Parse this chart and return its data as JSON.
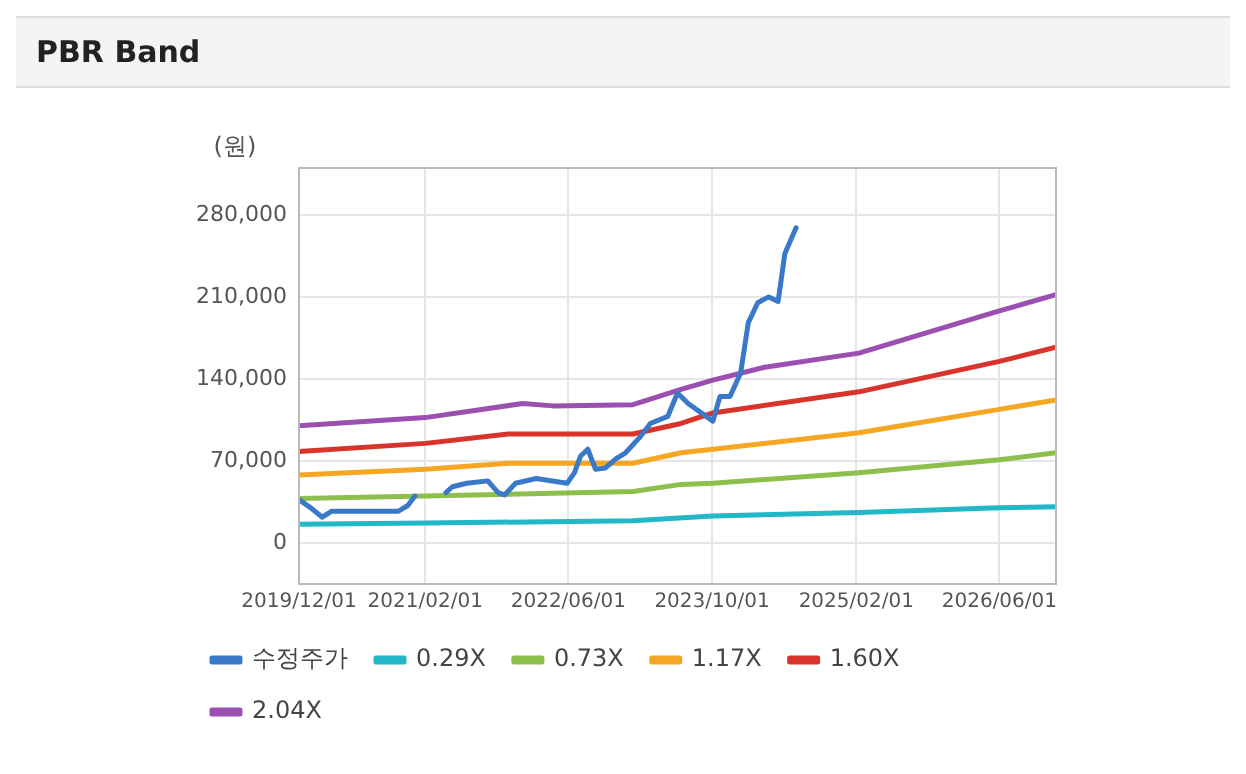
{
  "chart_data": {
    "type": "line",
    "title": "PBR Band",
    "ylabel": "(원)",
    "xlim": [
      "2019-12-01",
      "2026-12-10"
    ],
    "xticks": [
      {
        "value": "2019-12-01",
        "label": "2019/12/01"
      },
      {
        "value": "2021-02-01",
        "label": "2021/02/01"
      },
      {
        "value": "2022-06-01",
        "label": "2022/06/01"
      },
      {
        "value": "2023-10-01",
        "label": "2023/10/01"
      },
      {
        "value": "2025-02-01",
        "label": "2025/02/01"
      },
      {
        "value": "2026-06-01",
        "label": "2026/06/01"
      }
    ],
    "ylim": [
      -35000,
      320000
    ],
    "yticks": [
      {
        "value": 0,
        "label": "0"
      },
      {
        "value": 70000,
        "label": "70,000"
      },
      {
        "value": 140000,
        "label": "140,000"
      },
      {
        "value": 210000,
        "label": "210,000"
      },
      {
        "value": 280000,
        "label": "280,000"
      }
    ],
    "grid": true,
    "legend": "bottom",
    "marker": "none",
    "line_style": "solid",
    "series": [
      {
        "name": "수정주가",
        "color": "#3a78c8",
        "x": [
          "2019-12-01",
          "2020-01-10",
          "2020-02-18",
          "2020-03-20",
          "2020-11-01",
          "2020-12-04",
          "2020-12-28",
          "2021-02-01",
          "2021-04-12",
          "2021-05-04",
          "2021-06-22",
          "2021-09-01",
          "2021-10-06",
          "2021-10-28",
          "2021-12-04",
          "2022-02-12",
          "2022-05-28",
          "2022-06-22",
          "2022-07-12",
          "2022-08-06",
          "2022-09-01",
          "2022-10-04",
          "2022-11-10",
          "2022-12-12",
          "2023-02-01",
          "2023-03-06",
          "2023-05-04",
          "2023-06-06",
          "2023-07-12",
          "2023-10-04",
          "2023-10-28",
          "2023-12-01",
          "2024-01-06",
          "2024-02-01",
          "2024-03-04",
          "2024-04-10",
          "2024-05-12",
          "2024-06-04",
          "2024-07-12"
        ],
        "values": [
          37000,
          30000,
          22000,
          27000,
          27000,
          32000,
          40000,
          null,
          43000,
          48000,
          51000,
          53000,
          43000,
          41000,
          51000,
          55000,
          51000,
          60000,
          74000,
          80000,
          63000,
          64000,
          72000,
          77000,
          91000,
          102000,
          108000,
          128000,
          119000,
          104000,
          125000,
          125000,
          145000,
          188000,
          205000,
          210000,
          206000,
          247000,
          269000
        ]
      },
      {
        "name": "0.29X",
        "color": "#22b8c8",
        "x": [
          "2019-12-01",
          "2021-02-01",
          "2023-01-06",
          "2023-10-04",
          "2025-02-10",
          "2026-06-01",
          "2026-12-10"
        ],
        "values": [
          16000,
          17000,
          19000,
          23000,
          26000,
          30000,
          31000
        ]
      },
      {
        "name": "0.73X",
        "color": "#8cbf4c",
        "x": [
          "2019-12-01",
          "2021-02-01",
          "2023-01-06",
          "2023-06-18",
          "2023-10-04",
          "2025-02-10",
          "2026-06-01",
          "2026-12-10"
        ],
        "values": [
          38000,
          40000,
          44000,
          50000,
          51000,
          60000,
          71000,
          77000
        ]
      },
      {
        "name": "1.17X",
        "color": "#f5a623",
        "x": [
          "2019-12-01",
          "2021-02-01",
          "2021-11-10",
          "2023-01-06",
          "2023-06-18",
          "2023-10-04",
          "2025-02-10",
          "2026-06-01",
          "2026-12-10"
        ],
        "values": [
          58000,
          63000,
          68000,
          68000,
          77000,
          80000,
          94000,
          114000,
          122000
        ]
      },
      {
        "name": "1.60X",
        "color": "#d9342b",
        "x": [
          "2019-12-01",
          "2021-02-01",
          "2021-11-10",
          "2023-01-06",
          "2023-06-18",
          "2023-10-04",
          "2025-02-10",
          "2026-06-01",
          "2026-12-10"
        ],
        "values": [
          78000,
          85000,
          93000,
          93000,
          102000,
          111000,
          129000,
          155000,
          167000
        ]
      },
      {
        "name": "2.04X",
        "color": "#9b4fb0",
        "x": [
          "2019-12-01",
          "2021-02-01",
          "2021-12-28",
          "2022-04-10",
          "2023-01-06",
          "2023-06-18",
          "2023-10-04",
          "2024-03-28",
          "2025-02-10",
          "2026-06-01",
          "2026-12-10"
        ],
        "values": [
          100000,
          107000,
          119000,
          117000,
          118000,
          131000,
          139000,
          150000,
          162000,
          198000,
          212000
        ]
      }
    ]
  }
}
